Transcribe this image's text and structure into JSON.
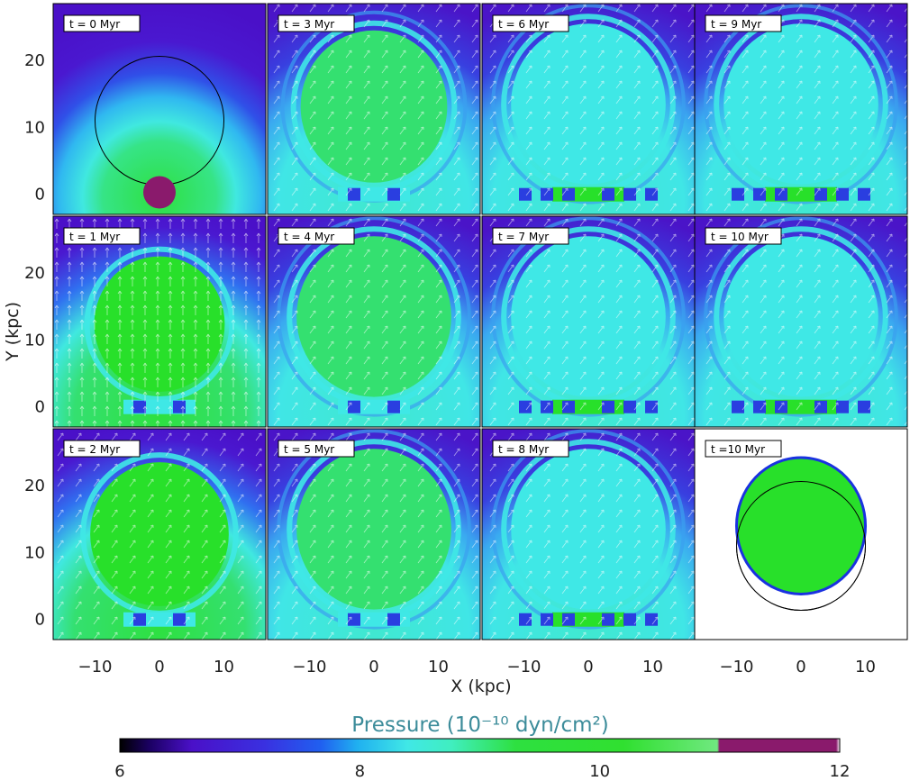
{
  "figure": {
    "x_axis_title": "X (kpc)",
    "y_axis_title": "Y (kpc)",
    "x_ticks": [
      "−10",
      "0",
      "10"
    ],
    "y_ticks": [
      "0",
      "10",
      "20"
    ],
    "colorbar": {
      "title": "Pressure (10⁻¹⁰ dyn/cm²)",
      "ticks": [
        "6",
        "8",
        "10",
        "12"
      ],
      "range": [
        6,
        12
      ]
    },
    "panels": [
      {
        "label": "t = 0 Myr",
        "time_myr": 0
      },
      {
        "label": "t = 3 Myr",
        "time_myr": 3
      },
      {
        "label": "t = 6 Myr",
        "time_myr": 6
      },
      {
        "label": "t = 9 Myr",
        "time_myr": 9
      },
      {
        "label": "t = 1 Myr",
        "time_myr": 1
      },
      {
        "label": "t = 4 Myr",
        "time_myr": 4
      },
      {
        "label": "t = 7 Myr",
        "time_myr": 7
      },
      {
        "label": "t = 10 Myr",
        "time_myr": 10
      },
      {
        "label": "t = 2 Myr",
        "time_myr": 2
      },
      {
        "label": "t = 5 Myr",
        "time_myr": 5
      },
      {
        "label": "t = 8 Myr",
        "time_myr": 8
      },
      {
        "label": "t =10 Myr",
        "time_myr": 10
      }
    ]
  },
  "colors": {
    "high_pressure": "#8a1a6c",
    "mid_pressure": "#28e02a",
    "cyan": "#3fe8e6",
    "blue": "#2a3ee0",
    "low_pressure": "#4b16c8"
  }
}
